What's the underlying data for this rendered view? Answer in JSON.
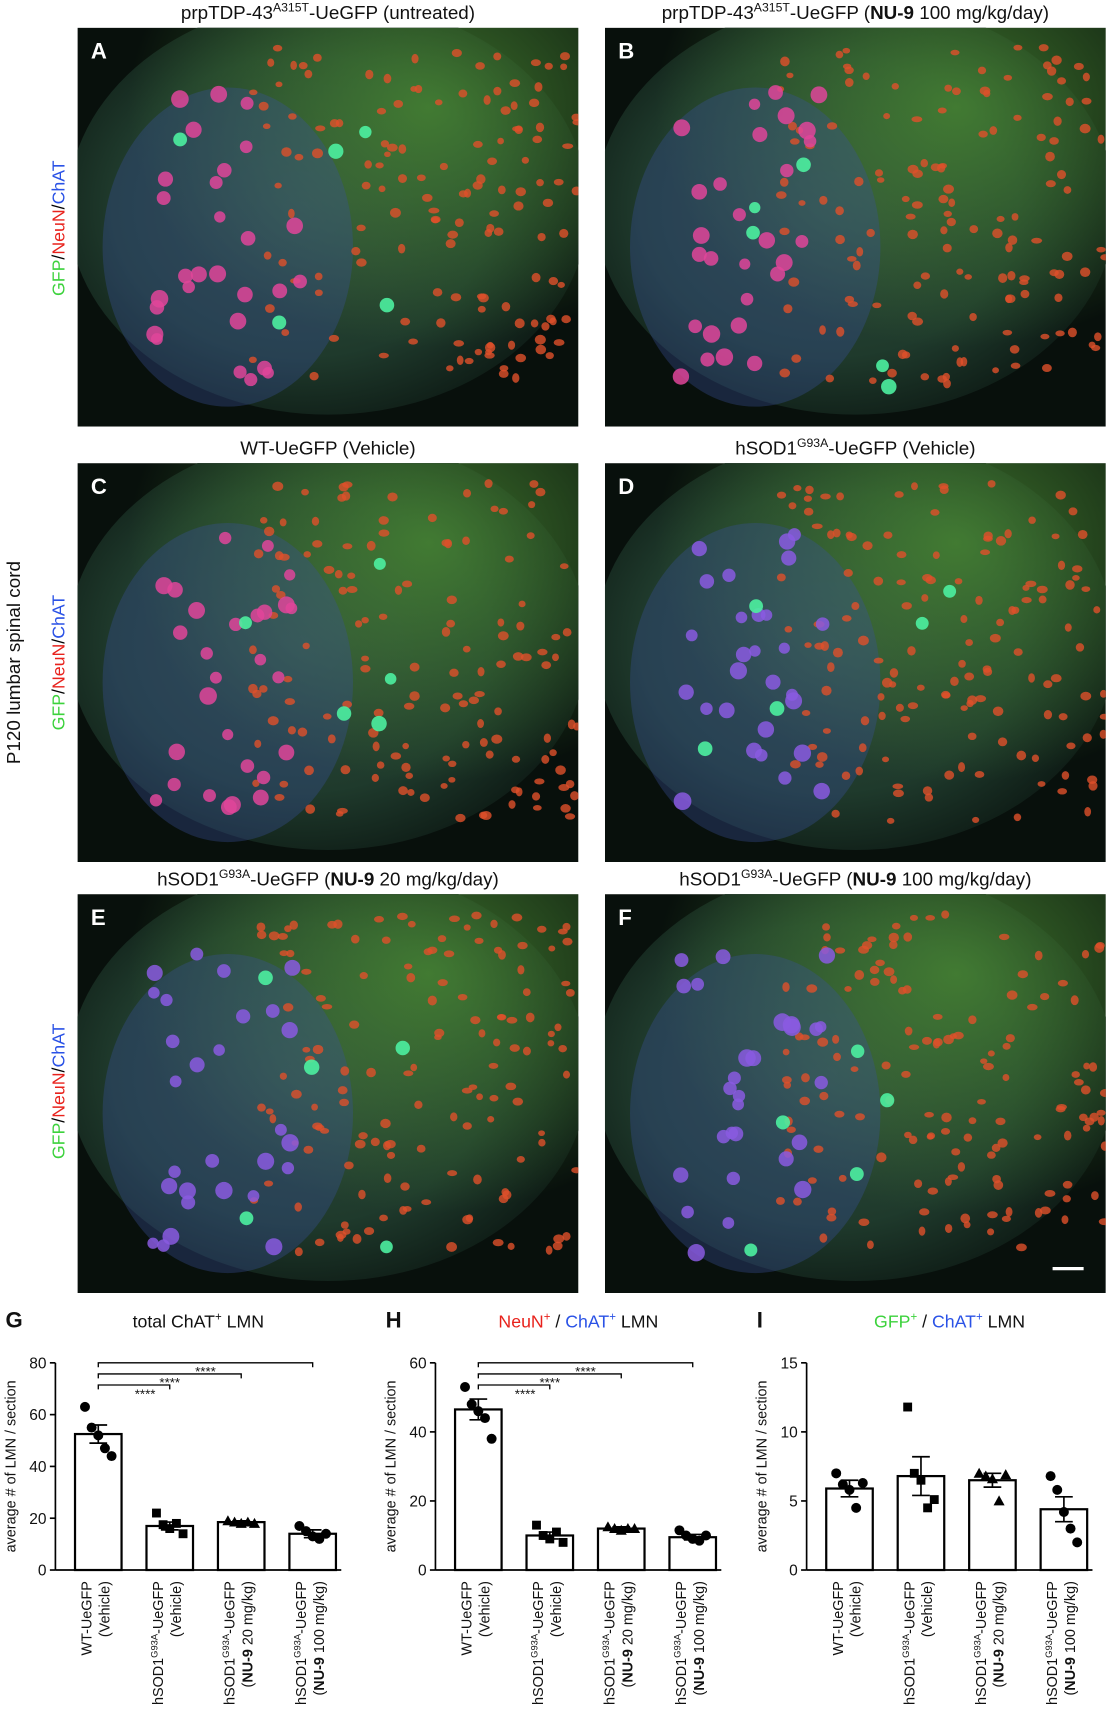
{
  "figure": {
    "side_label": "P120 lumbar spinal cord",
    "stain_label": [
      {
        "text": "GFP",
        "color": "#3cd23c"
      },
      {
        "text": "/"
      },
      {
        "text": "NeuN",
        "color": "#e8221c"
      },
      {
        "text": "/"
      },
      {
        "text": "ChAT",
        "color": "#2a52e6"
      }
    ],
    "panels": [
      {
        "letter": "A",
        "title": [
          {
            "text": "prpTDP-43"
          },
          {
            "text": "A315T",
            "style": "sup"
          },
          {
            "text": "-UeGFP (untreated)"
          }
        ]
      },
      {
        "letter": "B",
        "title": [
          {
            "text": "prpTDP-43"
          },
          {
            "text": "A315T",
            "style": "sup"
          },
          {
            "text": "-UeGFP ("
          },
          {
            "text": "NU-9",
            "style": "bold"
          },
          {
            "text": " 100 mg/kg/day)"
          }
        ]
      },
      {
        "letter": "C",
        "title": [
          {
            "text": "WT-UeGFP (Vehicle)"
          }
        ]
      },
      {
        "letter": "D",
        "title": [
          {
            "text": "hSOD1"
          },
          {
            "text": "G93A",
            "style": "sup"
          },
          {
            "text": "-UeGFP (Vehicle)"
          }
        ]
      },
      {
        "letter": "E",
        "title": [
          {
            "text": "hSOD1"
          },
          {
            "text": "G93A",
            "style": "sup"
          },
          {
            "text": "-UeGFP ("
          },
          {
            "text": "NU-9",
            "style": "bold"
          },
          {
            "text": " 20 mg/kg/day)"
          }
        ]
      },
      {
        "letter": "F",
        "title": [
          {
            "text": "hSOD1"
          },
          {
            "text": "G93A",
            "style": "sup"
          },
          {
            "text": "-UeGFP ("
          },
          {
            "text": "NU-9",
            "style": "bold"
          },
          {
            "text": " 100 mg/kg/day)"
          }
        ]
      }
    ]
  },
  "chart_data": [
    {
      "type": "bar",
      "letter": "G",
      "title": [
        {
          "text": "total ChAT"
        },
        {
          "text": "+",
          "style": "sup"
        },
        {
          "text": " LMN"
        }
      ],
      "y_label": "average # of LMN / section",
      "categories": [
        [
          [
            {
              "text": "WT-UeGFP"
            }
          ],
          [
            {
              "text": "(Vehicle)"
            }
          ]
        ],
        [
          [
            {
              "text": "hSOD1"
            },
            {
              "text": "G93A",
              "style": "sup"
            },
            {
              "text": "-UeGFP"
            }
          ],
          [
            {
              "text": "(Vehicle)"
            }
          ]
        ],
        [
          [
            {
              "text": "hSOD1"
            },
            {
              "text": "G93A",
              "style": "sup"
            },
            {
              "text": "-UeGFP"
            }
          ],
          [
            {
              "text": "("
            },
            {
              "text": "NU-9",
              "style": "bold"
            },
            {
              "text": " 20 mg/kg)"
            }
          ]
        ],
        [
          [
            {
              "text": "hSOD1"
            },
            {
              "text": "G93A",
              "style": "sup"
            },
            {
              "text": "-UeGFP"
            }
          ],
          [
            {
              "text": "("
            },
            {
              "text": "NU-9",
              "style": "bold"
            },
            {
              "text": " 100 mg/kg)"
            }
          ]
        ]
      ],
      "values": [
        52.5,
        17,
        18.5,
        14
      ],
      "errors": [
        3.5,
        1.5,
        0.5,
        1.5
      ],
      "points": [
        [
          63,
          55,
          52,
          47,
          44
        ],
        [
          22,
          17.5,
          16,
          18,
          14
        ],
        [
          19,
          18.5,
          18,
          18.5,
          18
        ],
        [
          17,
          15,
          13,
          12,
          14
        ]
      ],
      "markers": [
        "circle",
        "square",
        "triangle",
        "circle"
      ],
      "ylim": [
        0,
        80
      ],
      "yticks": [
        0,
        20,
        40,
        60,
        80
      ],
      "significance": [
        {
          "from": 0,
          "to": 1,
          "label": "****"
        },
        {
          "from": 0,
          "to": 2,
          "label": "****"
        },
        {
          "from": 0,
          "to": 3,
          "label": "****"
        }
      ]
    },
    {
      "type": "bar",
      "letter": "H",
      "title": [
        {
          "text": "NeuN",
          "color": "#e8221c"
        },
        {
          "text": "+",
          "style": "sup",
          "color": "#e8221c"
        },
        {
          "text": " / "
        },
        {
          "text": "ChAT",
          "color": "#2a52e6"
        },
        {
          "text": "+",
          "style": "sup",
          "color": "#2a52e6"
        },
        {
          "text": " LMN"
        }
      ],
      "y_label": "average # of LMN / section",
      "categories": [
        [
          [
            {
              "text": "WT-UeGFP"
            }
          ],
          [
            {
              "text": "(Vehicle)"
            }
          ]
        ],
        [
          [
            {
              "text": "hSOD1"
            },
            {
              "text": "G93A",
              "style": "sup"
            },
            {
              "text": "-UeGFP"
            }
          ],
          [
            {
              "text": "(Vehicle)"
            }
          ]
        ],
        [
          [
            {
              "text": "hSOD1"
            },
            {
              "text": "G93A",
              "style": "sup"
            },
            {
              "text": "-UeGFP"
            }
          ],
          [
            {
              "text": "("
            },
            {
              "text": "NU-9",
              "style": "bold"
            },
            {
              "text": " 20 mg/kg)"
            }
          ]
        ],
        [
          [
            {
              "text": "hSOD1"
            },
            {
              "text": "G93A",
              "style": "sup"
            },
            {
              "text": "-UeGFP"
            }
          ],
          [
            {
              "text": "("
            },
            {
              "text": "NU-9",
              "style": "bold"
            },
            {
              "text": " 100 mg/kg)"
            }
          ]
        ]
      ],
      "values": [
        46.5,
        10,
        12,
        9.5
      ],
      "errors": [
        3,
        1,
        0.5,
        0.8
      ],
      "points": [
        [
          53,
          48,
          46,
          44,
          38
        ],
        [
          13,
          10,
          9,
          11,
          8
        ],
        [
          12.5,
          12,
          11.5,
          12,
          12
        ],
        [
          11.5,
          10,
          9,
          8.5,
          10
        ]
      ],
      "markers": [
        "circle",
        "square",
        "triangle",
        "circle"
      ],
      "ylim": [
        0,
        60
      ],
      "yticks": [
        0,
        20,
        40,
        60
      ],
      "significance": [
        {
          "from": 0,
          "to": 1,
          "label": "****"
        },
        {
          "from": 0,
          "to": 2,
          "label": "****"
        },
        {
          "from": 0,
          "to": 3,
          "label": "****"
        }
      ]
    },
    {
      "type": "bar",
      "letter": "I",
      "title": [
        {
          "text": "GFP",
          "color": "#3cd23c"
        },
        {
          "text": "+",
          "style": "sup",
          "color": "#3cd23c"
        },
        {
          "text": " / "
        },
        {
          "text": "ChAT",
          "color": "#2a52e6"
        },
        {
          "text": "+",
          "style": "sup",
          "color": "#2a52e6"
        },
        {
          "text": " LMN"
        }
      ],
      "y_label": "average # of LMN / section",
      "categories": [
        [
          [
            {
              "text": "WT-UeGFP"
            }
          ],
          [
            {
              "text": "(Vehicle)"
            }
          ]
        ],
        [
          [
            {
              "text": "hSOD1"
            },
            {
              "text": "G93A",
              "style": "sup"
            },
            {
              "text": "-UeGFP"
            }
          ],
          [
            {
              "text": "(Vehicle)"
            }
          ]
        ],
        [
          [
            {
              "text": "hSOD1"
            },
            {
              "text": "G93A",
              "style": "sup"
            },
            {
              "text": "-UeGFP"
            }
          ],
          [
            {
              "text": "("
            },
            {
              "text": "NU-9",
              "style": "bold"
            },
            {
              "text": " 20 mg/kg)"
            }
          ]
        ],
        [
          [
            {
              "text": "hSOD1"
            },
            {
              "text": "G93A",
              "style": "sup"
            },
            {
              "text": "-UeGFP"
            }
          ],
          [
            {
              "text": "("
            },
            {
              "text": "NU-9",
              "style": "bold"
            },
            {
              "text": " 100 mg/kg)"
            }
          ]
        ]
      ],
      "values": [
        5.9,
        6.8,
        6.5,
        4.4
      ],
      "errors": [
        0.6,
        1.4,
        0.5,
        0.9
      ],
      "points": [
        [
          7,
          6.2,
          5.8,
          4.5,
          6.3
        ],
        [
          11.8,
          7,
          6.5,
          4.5,
          5.1
        ],
        [
          7,
          6.8,
          6.6,
          5,
          6.9
        ],
        [
          6.8,
          5.8,
          4.2,
          3,
          2
        ]
      ],
      "markers": [
        "circle",
        "square",
        "triangle",
        "circle"
      ],
      "ylim": [
        0,
        15
      ],
      "yticks": [
        0,
        5,
        10,
        15
      ],
      "significance": []
    }
  ]
}
